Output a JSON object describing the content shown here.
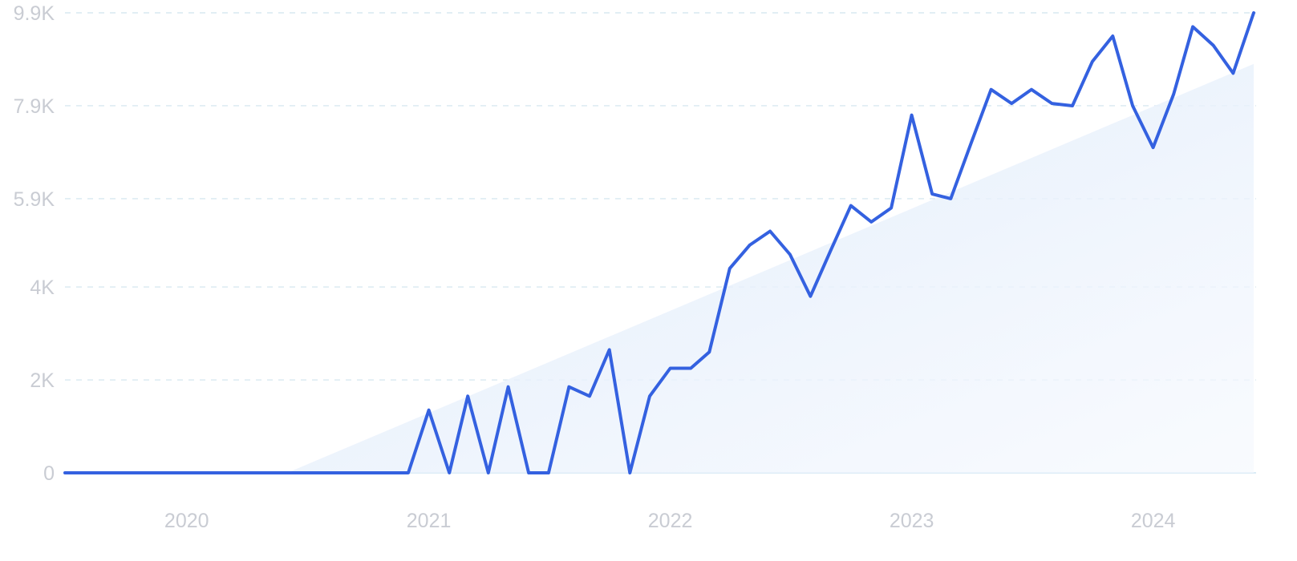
{
  "chart_data": {
    "type": "line",
    "title": "",
    "xlabel": "",
    "ylabel": "",
    "ylim": [
      0,
      9900
    ],
    "yticks": [
      {
        "value": 0,
        "label": "0"
      },
      {
        "value": 2000,
        "label": "2K"
      },
      {
        "value": 4000,
        "label": "4K"
      },
      {
        "value": 5900,
        "label": "5.9K"
      },
      {
        "value": 7900,
        "label": "7.9K"
      },
      {
        "value": 9900,
        "label": "9.9K"
      }
    ],
    "xticks": [
      "2020",
      "2021",
      "2022",
      "2023",
      "2024"
    ],
    "grid": true,
    "legend": "none",
    "colors": {
      "line": "#3461e0",
      "trend_fill": "#e4eefb",
      "grid": "#cfe3ee",
      "tick_text": "#c9ccd3"
    },
    "series": [
      {
        "x": [
          "2019-07",
          "2019-08",
          "2019-09",
          "2019-10",
          "2019-11",
          "2019-12",
          "2020-01",
          "2020-02",
          "2020-03",
          "2020-04",
          "2020-05",
          "2020-06",
          "2020-07",
          "2020-08",
          "2020-09",
          "2020-10",
          "2020-11",
          "2020-12",
          "2021-01",
          "2021-02",
          "2021-03",
          "2021-04",
          "2021-05",
          "2021-06",
          "2021-07",
          "2021-08",
          "2021-09",
          "2021-10",
          "2021-11",
          "2021-12",
          "2022-01",
          "2022-02",
          "2022-03",
          "2022-04",
          "2022-05",
          "2022-06",
          "2022-07",
          "2022-08",
          "2022-09",
          "2022-10",
          "2022-11",
          "2022-12",
          "2023-01",
          "2023-02",
          "2023-03",
          "2023-04",
          "2023-05",
          "2023-06",
          "2023-07",
          "2023-08",
          "2023-09",
          "2023-10",
          "2023-11",
          "2023-12",
          "2024-01",
          "2024-02",
          "2024-03",
          "2024-04",
          "2024-05",
          "2024-06"
        ],
        "values": [
          0,
          0,
          0,
          0,
          0,
          0,
          0,
          0,
          0,
          0,
          0,
          0,
          0,
          0,
          0,
          0,
          0,
          0,
          1350,
          0,
          1650,
          0,
          1850,
          0,
          0,
          1850,
          1650,
          2650,
          0,
          1650,
          2250,
          2250,
          2600,
          4400,
          4900,
          5200,
          4700,
          3800,
          4800,
          5750,
          5400,
          5700,
          7700,
          6000,
          5900,
          7100,
          8250,
          7950,
          8250,
          7950,
          7900,
          8850,
          9400,
          7900,
          7000,
          8150,
          9600,
          9200,
          8600,
          9900
        ]
      }
    ],
    "trend": {
      "start": [
        "2020-06",
        0
      ],
      "end": [
        "2024-06",
        8800
      ]
    }
  }
}
